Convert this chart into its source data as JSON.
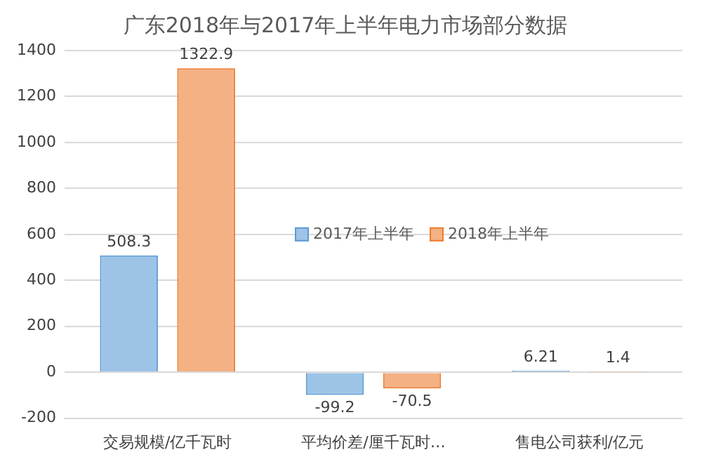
{
  "chart_data": {
    "type": "bar",
    "title": "广东2018年与2017年上半年电力市场部分数据",
    "categories": [
      "交易规模/亿千瓦时",
      "平均价差/厘千瓦时…",
      "售电公司获利/亿元"
    ],
    "series": [
      {
        "name": "2017年上半年",
        "color": "#9dc3e6",
        "values": [
          508.3,
          -99.2,
          6.21
        ]
      },
      {
        "name": "2018年上半年",
        "color": "#f4b183",
        "values": [
          1322.9,
          -70.5,
          1.4
        ]
      }
    ],
    "ylim": [
      -200,
      1400
    ],
    "yticks": [
      -200,
      0,
      200,
      400,
      600,
      800,
      1000,
      1200,
      1400
    ],
    "grid": "y",
    "legend": "center",
    "data_labels": true
  }
}
